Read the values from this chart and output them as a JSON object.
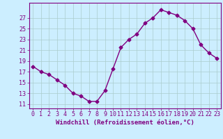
{
  "x": [
    0,
    1,
    2,
    3,
    4,
    5,
    6,
    7,
    8,
    9,
    10,
    11,
    12,
    13,
    14,
    15,
    16,
    17,
    18,
    19,
    20,
    21,
    22,
    23
  ],
  "y": [
    18,
    17,
    16.5,
    15.5,
    14.5,
    13,
    12.5,
    11.5,
    11.5,
    13.5,
    17.5,
    21.5,
    23,
    24,
    26,
    27,
    28.5,
    28,
    27.5,
    26.5,
    25,
    22,
    20.5,
    19.5
  ],
  "line_color": "#800080",
  "marker": "D",
  "marker_size": 2.5,
  "bg_color": "#cceeff",
  "grid_color": "#aacccc",
  "xlabel": "Windchill (Refroidissement éolien,°C)",
  "xlabel_color": "#800080",
  "yticks": [
    11,
    13,
    15,
    17,
    19,
    21,
    23,
    25,
    27
  ],
  "ylim": [
    10.2,
    29.8
  ],
  "xlim": [
    -0.5,
    23.5
  ],
  "tick_color": "#800080",
  "spine_color": "#800080",
  "label_fontsize": 6.5,
  "tick_fontsize": 6.0,
  "linewidth": 1.0
}
